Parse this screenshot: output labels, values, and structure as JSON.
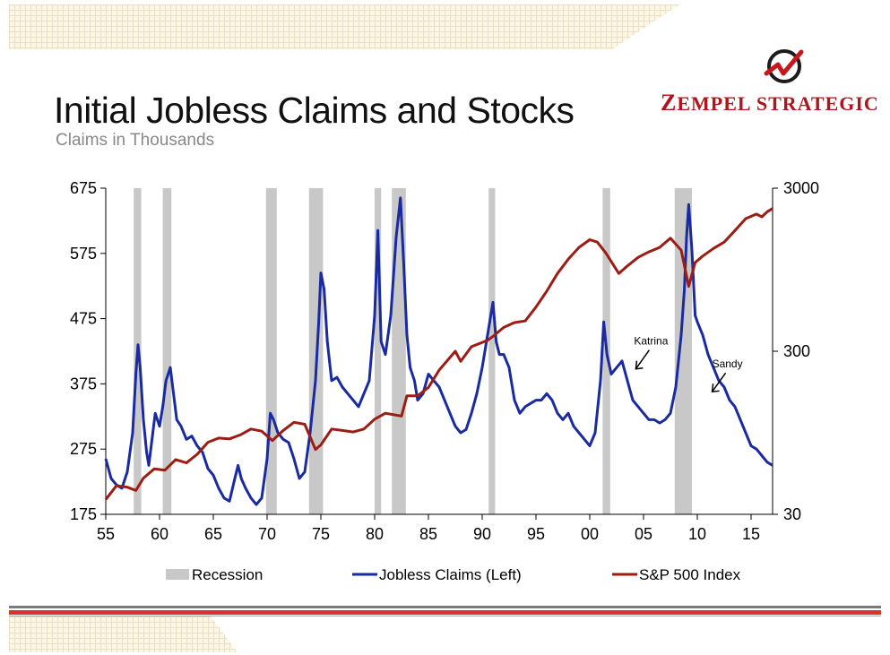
{
  "header": {
    "title": "Initial Jobless Claims and Stocks",
    "subtitle": "Claims in Thousands",
    "brand_first": "Z",
    "brand_rest": "EMPEL STRATEGIC"
  },
  "icons": {
    "logo": "zempel-logo-icon",
    "arrow": "arrow-icon"
  },
  "colors": {
    "claims": "#1a2aa0",
    "sp500": "#9b1d14",
    "recession": "#c8c8c8",
    "brand": "#b0151b"
  },
  "chart_data": {
    "type": "line",
    "title": "Initial Jobless Claims and Stocks",
    "subtitle": "Claims in Thousands",
    "x_axis": {
      "range": [
        1955,
        2017
      ],
      "ticks": [
        1955,
        1960,
        1965,
        1970,
        1975,
        1980,
        1985,
        1990,
        1995,
        2000,
        2005,
        2010,
        2015
      ],
      "tick_labels": [
        "55",
        "60",
        "65",
        "70",
        "75",
        "80",
        "85",
        "90",
        "95",
        "00",
        "05",
        "10",
        "15"
      ]
    },
    "y_left": {
      "range": [
        175,
        675
      ],
      "ticks": [
        175,
        275,
        375,
        475,
        575,
        675
      ],
      "tick_labels": [
        "175",
        "275",
        "375",
        "475",
        "575",
        "675"
      ]
    },
    "y_right": {
      "scale": "log",
      "range": [
        30,
        3000
      ],
      "ticks": [
        30,
        300,
        3000
      ],
      "tick_labels": [
        "30",
        "300",
        "3000"
      ]
    },
    "legend": {
      "position": "bottom",
      "entries": [
        "Recession",
        "Jobless Claims (Left)",
        "S&P 500 Index"
      ]
    },
    "recessions": [
      [
        1957.6,
        1958.3
      ],
      [
        1960.3,
        1961.1
      ],
      [
        1969.9,
        1970.9
      ],
      [
        1973.9,
        1975.2
      ],
      [
        1980.0,
        1980.6
      ],
      [
        1981.6,
        1982.9
      ],
      [
        1990.6,
        1991.2
      ],
      [
        2001.2,
        2001.9
      ],
      [
        2007.9,
        2009.5
      ]
    ],
    "annotations": [
      {
        "text": "Katrina",
        "x": 2005.7,
        "y": 435
      },
      {
        "text": "Sandy",
        "x": 2012.8,
        "y": 400
      }
    ],
    "series": [
      {
        "name": "Jobless Claims (Left)",
        "axis": "left",
        "x": [
          1955.0,
          1955.5,
          1956.0,
          1956.5,
          1957.0,
          1957.5,
          1957.8,
          1958.0,
          1958.2,
          1958.5,
          1958.8,
          1959.0,
          1959.3,
          1959.6,
          1960.0,
          1960.3,
          1960.6,
          1961.0,
          1961.3,
          1961.6,
          1962.0,
          1962.5,
          1963.0,
          1963.5,
          1964.0,
          1964.5,
          1965.0,
          1965.5,
          1966.0,
          1966.5,
          1967.0,
          1967.3,
          1967.6,
          1968.0,
          1968.5,
          1969.0,
          1969.5,
          1970.0,
          1970.3,
          1970.6,
          1971.0,
          1971.5,
          1972.0,
          1972.5,
          1973.0,
          1973.5,
          1974.0,
          1974.5,
          1974.8,
          1975.0,
          1975.3,
          1975.6,
          1976.0,
          1976.5,
          1977.0,
          1977.5,
          1978.0,
          1978.5,
          1979.0,
          1979.5,
          1980.0,
          1980.3,
          1980.6,
          1981.0,
          1981.5,
          1982.0,
          1982.4,
          1982.7,
          1983.0,
          1983.3,
          1983.7,
          1984.0,
          1984.5,
          1985.0,
          1985.5,
          1986.0,
          1986.5,
          1987.0,
          1987.5,
          1988.0,
          1988.5,
          1989.0,
          1989.5,
          1990.0,
          1990.5,
          1991.0,
          1991.3,
          1991.6,
          1992.0,
          1992.5,
          1993.0,
          1993.5,
          1994.0,
          1994.5,
          1995.0,
          1995.5,
          1996.0,
          1996.5,
          1997.0,
          1997.5,
          1998.0,
          1998.5,
          1999.0,
          1999.5,
          2000.0,
          2000.5,
          2001.0,
          2001.3,
          2001.6,
          2002.0,
          2002.5,
          2003.0,
          2003.5,
          2004.0,
          2004.5,
          2005.0,
          2005.5,
          2006.0,
          2006.5,
          2007.0,
          2007.5,
          2008.0,
          2008.5,
          2008.8,
          2009.0,
          2009.2,
          2009.5,
          2009.8,
          2010.0,
          2010.5,
          2011.0,
          2011.5,
          2012.0,
          2012.5,
          2013.0,
          2013.5,
          2014.0,
          2014.5,
          2015.0,
          2015.5,
          2016.0,
          2016.5,
          2017.0
        ],
        "values": [
          260,
          230,
          220,
          215,
          240,
          300,
          390,
          435,
          400,
          320,
          270,
          250,
          290,
          330,
          310,
          340,
          380,
          400,
          360,
          320,
          310,
          290,
          295,
          280,
          270,
          245,
          235,
          215,
          200,
          195,
          230,
          250,
          230,
          215,
          200,
          190,
          200,
          260,
          330,
          320,
          300,
          290,
          285,
          260,
          230,
          240,
          300,
          380,
          470,
          545,
          520,
          440,
          380,
          385,
          370,
          360,
          350,
          340,
          360,
          380,
          480,
          610,
          440,
          420,
          480,
          600,
          660,
          560,
          450,
          400,
          380,
          350,
          360,
          390,
          380,
          370,
          350,
          330,
          310,
          300,
          305,
          330,
          360,
          400,
          450,
          500,
          440,
          420,
          420,
          400,
          350,
          330,
          340,
          345,
          350,
          350,
          360,
          350,
          330,
          320,
          330,
          310,
          300,
          290,
          280,
          300,
          380,
          470,
          420,
          390,
          400,
          410,
          380,
          350,
          340,
          330,
          320,
          320,
          315,
          320,
          330,
          370,
          450,
          520,
          600,
          650,
          580,
          480,
          470,
          450,
          420,
          400,
          380,
          370,
          350,
          340,
          320,
          300,
          280,
          275,
          265,
          255,
          250
        ]
      },
      {
        "name": "S&P 500 Index",
        "axis": "right",
        "x": [
          1955.0,
          1956.0,
          1957.0,
          1957.8,
          1958.5,
          1959.5,
          1960.5,
          1961.5,
          1962.5,
          1963.5,
          1964.5,
          1965.5,
          1966.5,
          1967.5,
          1968.5,
          1969.5,
          1970.5,
          1971.5,
          1972.5,
          1973.5,
          1974.5,
          1975.0,
          1976.0,
          1977.0,
          1978.0,
          1979.0,
          1980.0,
          1981.0,
          1982.5,
          1983.0,
          1984.0,
          1985.0,
          1986.0,
          1987.5,
          1988.0,
          1989.0,
          1990.5,
          1991.0,
          1992.0,
          1993.0,
          1994.0,
          1995.0,
          1996.0,
          1997.0,
          1998.0,
          1999.0,
          2000.0,
          2000.7,
          2001.5,
          2002.7,
          2003.5,
          2004.5,
          2005.5,
          2006.5,
          2007.5,
          2008.5,
          2009.2,
          2009.8,
          2010.5,
          2011.5,
          2012.5,
          2013.5,
          2014.5,
          2015.5,
          2016.0,
          2016.5,
          2017.0
        ],
        "values": [
          37,
          45,
          44,
          42,
          50,
          57,
          56,
          65,
          62,
          70,
          83,
          88,
          87,
          92,
          100,
          97,
          85,
          98,
          110,
          107,
          75,
          80,
          100,
          98,
          96,
          100,
          115,
          125,
          120,
          160,
          160,
          180,
          230,
          300,
          260,
          320,
          350,
          370,
          420,
          450,
          460,
          560,
          700,
          900,
          1100,
          1300,
          1450,
          1400,
          1200,
          900,
          1000,
          1130,
          1220,
          1300,
          1480,
          1250,
          750,
          1050,
          1150,
          1280,
          1400,
          1650,
          1950,
          2080,
          2000,
          2150,
          2250
        ]
      }
    ]
  }
}
